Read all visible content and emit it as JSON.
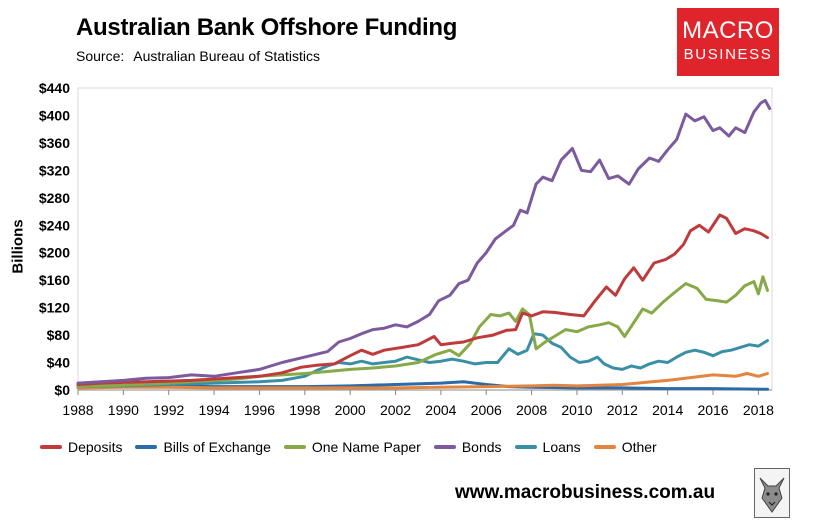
{
  "header": {
    "title": "Australian Bank Offshore Funding",
    "source_label": "Source:",
    "source_value": "Australian Bureau of Statistics"
  },
  "logo": {
    "line1": "MACRO",
    "line2": "BUSINESS",
    "color": "#e0242b"
  },
  "footer": {
    "url": "www.macrobusiness.com.au"
  },
  "chart_data": {
    "type": "line",
    "title": "Australian Bank Offshore Funding",
    "xlabel": "",
    "ylabel": "Billions",
    "xlim": [
      1988,
      2018.6
    ],
    "ylim": [
      0,
      440
    ],
    "yticks": [
      0,
      40,
      80,
      120,
      160,
      200,
      240,
      280,
      320,
      360,
      400,
      440
    ],
    "ytick_labels": [
      "$0",
      "$40",
      "$80",
      "$120",
      "$160",
      "$200",
      "$240",
      "$280",
      "$320",
      "$360",
      "$400",
      "$440"
    ],
    "xticks": [
      1988,
      1990,
      1992,
      1994,
      1996,
      1998,
      2000,
      2002,
      2004,
      2006,
      2008,
      2010,
      2012,
      2014,
      2016,
      2018
    ],
    "xtick_labels": [
      "1988",
      "1990",
      "1992",
      "1994",
      "1996",
      "1998",
      "2000",
      "2002",
      "2004",
      "2006",
      "2008",
      "2010",
      "2012",
      "2014",
      "2016",
      "2018"
    ],
    "legend_position": "bottom",
    "series": [
      {
        "name": "Deposits",
        "color": "#bf3a3a",
        "points": [
          [
            1988,
            8
          ],
          [
            1989,
            10
          ],
          [
            1990,
            11
          ],
          [
            1991,
            12
          ],
          [
            1992,
            13
          ],
          [
            1993,
            14
          ],
          [
            1994,
            16
          ],
          [
            1995,
            18
          ],
          [
            1996,
            20
          ],
          [
            1997,
            25
          ],
          [
            1997.8,
            33
          ],
          [
            1998.5,
            36
          ],
          [
            1999.3,
            38
          ],
          [
            2000,
            50
          ],
          [
            2000.5,
            58
          ],
          [
            2001,
            52
          ],
          [
            2001.5,
            58
          ],
          [
            2002.3,
            62
          ],
          [
            2003,
            66
          ],
          [
            2003.7,
            78
          ],
          [
            2004,
            66
          ],
          [
            2004.5,
            68
          ],
          [
            2005,
            70
          ],
          [
            2005.6,
            76
          ],
          [
            2006.3,
            80
          ],
          [
            2006.9,
            87
          ],
          [
            2007.3,
            88
          ],
          [
            2007.6,
            112
          ],
          [
            2008,
            108
          ],
          [
            2008.5,
            114
          ],
          [
            2009,
            113
          ],
          [
            2009.7,
            110
          ],
          [
            2010.3,
            108
          ],
          [
            2010.8,
            130
          ],
          [
            2011.3,
            150
          ],
          [
            2011.7,
            138
          ],
          [
            2012.1,
            162
          ],
          [
            2012.5,
            178
          ],
          [
            2012.9,
            160
          ],
          [
            2013.4,
            185
          ],
          [
            2013.9,
            190
          ],
          [
            2014.3,
            198
          ],
          [
            2014.7,
            212
          ],
          [
            2015,
            232
          ],
          [
            2015.4,
            240
          ],
          [
            2015.8,
            230
          ],
          [
            2016.3,
            255
          ],
          [
            2016.6,
            250
          ],
          [
            2017,
            228
          ],
          [
            2017.4,
            235
          ],
          [
            2017.8,
            232
          ],
          [
            2018.1,
            228
          ],
          [
            2018.4,
            222
          ]
        ]
      },
      {
        "name": "Bills of Exchange",
        "color": "#2d6aa8",
        "points": [
          [
            1988,
            6
          ],
          [
            1990,
            6
          ],
          [
            1992,
            6
          ],
          [
            1994,
            5
          ],
          [
            1996,
            5
          ],
          [
            1998,
            5
          ],
          [
            2000,
            6
          ],
          [
            2002,
            8
          ],
          [
            2004,
            10
          ],
          [
            2005,
            12
          ],
          [
            2006,
            8
          ],
          [
            2007,
            5
          ],
          [
            2008,
            4
          ],
          [
            2010,
            3
          ],
          [
            2012,
            3
          ],
          [
            2014,
            2
          ],
          [
            2016,
            2
          ],
          [
            2018.4,
            1
          ]
        ]
      },
      {
        "name": "One Name Paper",
        "color": "#87a947",
        "points": [
          [
            1988,
            5
          ],
          [
            1990,
            7
          ],
          [
            1992,
            10
          ],
          [
            1993,
            12
          ],
          [
            1994,
            14
          ],
          [
            1995,
            16
          ],
          [
            1996,
            20
          ],
          [
            1997,
            22
          ],
          [
            1998,
            24
          ],
          [
            1999,
            27
          ],
          [
            2000,
            30
          ],
          [
            2001,
            32
          ],
          [
            2002,
            35
          ],
          [
            2003,
            40
          ],
          [
            2003.8,
            52
          ],
          [
            2004.4,
            58
          ],
          [
            2004.8,
            50
          ],
          [
            2005.3,
            68
          ],
          [
            2005.7,
            92
          ],
          [
            2006.2,
            110
          ],
          [
            2006.6,
            108
          ],
          [
            2007,
            112
          ],
          [
            2007.3,
            100
          ],
          [
            2007.6,
            118
          ],
          [
            2007.9,
            110
          ],
          [
            2008.2,
            60
          ],
          [
            2008.6,
            70
          ],
          [
            2009,
            78
          ],
          [
            2009.5,
            88
          ],
          [
            2010,
            85
          ],
          [
            2010.5,
            92
          ],
          [
            2011,
            95
          ],
          [
            2011.4,
            98
          ],
          [
            2011.8,
            92
          ],
          [
            2012.1,
            78
          ],
          [
            2012.5,
            98
          ],
          [
            2012.9,
            118
          ],
          [
            2013.3,
            112
          ],
          [
            2013.8,
            128
          ],
          [
            2014.3,
            142
          ],
          [
            2014.8,
            155
          ],
          [
            2015.3,
            148
          ],
          [
            2015.7,
            132
          ],
          [
            2016.2,
            130
          ],
          [
            2016.6,
            128
          ],
          [
            2017,
            138
          ],
          [
            2017.4,
            152
          ],
          [
            2017.8,
            158
          ],
          [
            2018,
            140
          ],
          [
            2018.2,
            165
          ],
          [
            2018.4,
            145
          ]
        ]
      },
      {
        "name": "Bonds",
        "color": "#7b5a9e",
        "points": [
          [
            1988,
            10
          ],
          [
            1989,
            12
          ],
          [
            1990,
            14
          ],
          [
            1991,
            17
          ],
          [
            1992,
            18
          ],
          [
            1993,
            22
          ],
          [
            1994,
            20
          ],
          [
            1995,
            25
          ],
          [
            1996,
            30
          ],
          [
            1997,
            40
          ],
          [
            1998,
            48
          ],
          [
            1999,
            56
          ],
          [
            1999.5,
            70
          ],
          [
            2000,
            75
          ],
          [
            2000.5,
            82
          ],
          [
            2001,
            88
          ],
          [
            2001.5,
            90
          ],
          [
            2002,
            95
          ],
          [
            2002.5,
            92
          ],
          [
            2003,
            100
          ],
          [
            2003.5,
            110
          ],
          [
            2003.9,
            130
          ],
          [
            2004.4,
            138
          ],
          [
            2004.8,
            155
          ],
          [
            2005.2,
            160
          ],
          [
            2005.6,
            185
          ],
          [
            2006,
            200
          ],
          [
            2006.4,
            220
          ],
          [
            2006.8,
            230
          ],
          [
            2007.2,
            240
          ],
          [
            2007.5,
            262
          ],
          [
            2007.8,
            258
          ],
          [
            2008.2,
            300
          ],
          [
            2008.5,
            310
          ],
          [
            2008.9,
            305
          ],
          [
            2009.3,
            335
          ],
          [
            2009.8,
            352
          ],
          [
            2010.2,
            320
          ],
          [
            2010.6,
            318
          ],
          [
            2011,
            335
          ],
          [
            2011.4,
            308
          ],
          [
            2011.8,
            312
          ],
          [
            2012.3,
            300
          ],
          [
            2012.7,
            322
          ],
          [
            2013.2,
            338
          ],
          [
            2013.6,
            333
          ],
          [
            2014,
            350
          ],
          [
            2014.4,
            365
          ],
          [
            2014.8,
            402
          ],
          [
            2015.2,
            392
          ],
          [
            2015.6,
            398
          ],
          [
            2016,
            378
          ],
          [
            2016.3,
            382
          ],
          [
            2016.7,
            370
          ],
          [
            2017,
            382
          ],
          [
            2017.4,
            375
          ],
          [
            2017.8,
            405
          ],
          [
            2018.1,
            418
          ],
          [
            2018.3,
            422
          ],
          [
            2018.5,
            410
          ]
        ]
      },
      {
        "name": "Loans",
        "color": "#3a8fa7",
        "points": [
          [
            1988,
            5
          ],
          [
            1990,
            6
          ],
          [
            1992,
            8
          ],
          [
            1994,
            10
          ],
          [
            1996,
            12
          ],
          [
            1997,
            14
          ],
          [
            1998,
            20
          ],
          [
            1998.5,
            28
          ],
          [
            1999,
            35
          ],
          [
            1999.5,
            40
          ],
          [
            2000,
            38
          ],
          [
            2000.5,
            42
          ],
          [
            2001,
            38
          ],
          [
            2001.5,
            40
          ],
          [
            2002,
            42
          ],
          [
            2002.5,
            48
          ],
          [
            2003,
            44
          ],
          [
            2003.5,
            40
          ],
          [
            2004,
            42
          ],
          [
            2004.5,
            45
          ],
          [
            2005,
            42
          ],
          [
            2005.5,
            38
          ],
          [
            2006,
            40
          ],
          [
            2006.5,
            40
          ],
          [
            2007,
            60
          ],
          [
            2007.4,
            52
          ],
          [
            2007.8,
            58
          ],
          [
            2008.1,
            82
          ],
          [
            2008.5,
            80
          ],
          [
            2008.9,
            68
          ],
          [
            2009.3,
            62
          ],
          [
            2009.7,
            48
          ],
          [
            2010.1,
            40
          ],
          [
            2010.5,
            42
          ],
          [
            2010.9,
            48
          ],
          [
            2011.2,
            38
          ],
          [
            2011.6,
            32
          ],
          [
            2012,
            30
          ],
          [
            2012.4,
            35
          ],
          [
            2012.8,
            32
          ],
          [
            2013.2,
            38
          ],
          [
            2013.6,
            42
          ],
          [
            2014,
            40
          ],
          [
            2014.4,
            48
          ],
          [
            2014.8,
            55
          ],
          [
            2015.2,
            58
          ],
          [
            2015.6,
            55
          ],
          [
            2016,
            50
          ],
          [
            2016.4,
            56
          ],
          [
            2016.8,
            58
          ],
          [
            2017.2,
            62
          ],
          [
            2017.6,
            66
          ],
          [
            2018,
            64
          ],
          [
            2018.4,
            72
          ]
        ]
      },
      {
        "name": "Other",
        "color": "#e3853f",
        "points": [
          [
            1988,
            3
          ],
          [
            1990,
            4
          ],
          [
            1992,
            4
          ],
          [
            1994,
            3
          ],
          [
            1996,
            3
          ],
          [
            1998,
            3
          ],
          [
            2000,
            3
          ],
          [
            2002,
            3
          ],
          [
            2004,
            4
          ],
          [
            2006,
            5
          ],
          [
            2008,
            6
          ],
          [
            2009,
            7
          ],
          [
            2010,
            6
          ],
          [
            2011,
            7
          ],
          [
            2012,
            8
          ],
          [
            2013,
            11
          ],
          [
            2014,
            14
          ],
          [
            2015,
            18
          ],
          [
            2016,
            22
          ],
          [
            2017,
            20
          ],
          [
            2017.5,
            24
          ],
          [
            2018,
            20
          ],
          [
            2018.4,
            24
          ]
        ]
      }
    ]
  }
}
